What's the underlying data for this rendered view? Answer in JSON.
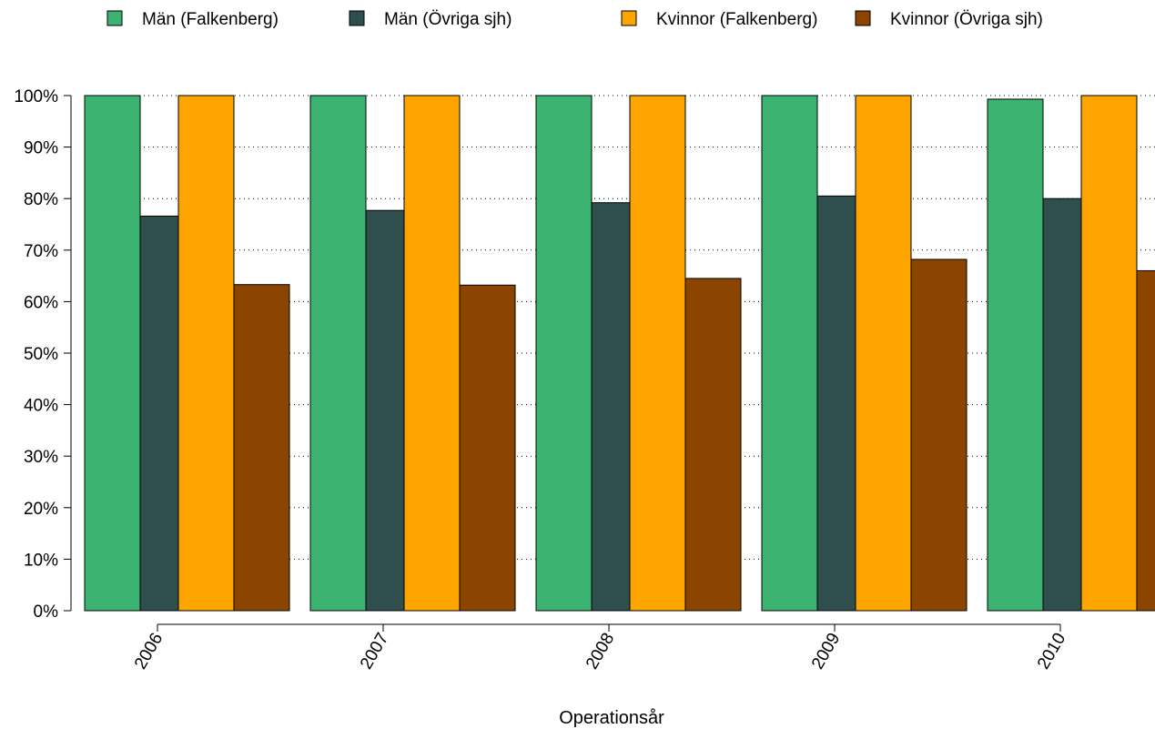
{
  "chart_data": {
    "type": "bar",
    "xlabel": "Operationsår",
    "ylabel": "",
    "ylim": [
      0,
      100
    ],
    "y_tick_format": "percent",
    "y_ticks": [
      0,
      10,
      20,
      30,
      40,
      50,
      60,
      70,
      80,
      90,
      100
    ],
    "y_tick_labels": [
      "0%",
      "10%",
      "20%",
      "30%",
      "40%",
      "50%",
      "60%",
      "70%",
      "80%",
      "90%",
      "100%"
    ],
    "categories": [
      "2006",
      "2007",
      "2008",
      "2009",
      "2010"
    ],
    "grid": "horizontal dotted",
    "legend_position": "top",
    "series": [
      {
        "name": "Män (Falkenberg)",
        "color": "#3cb371",
        "values": [
          100,
          100,
          100,
          100,
          99.3
        ]
      },
      {
        "name": "Män (Övriga sjh)",
        "color": "#2f4f4f",
        "values": [
          76.6,
          77.7,
          79.2,
          80.5,
          80.0
        ]
      },
      {
        "name": "Kvinnor (Falkenberg)",
        "color": "#ffa500",
        "values": [
          100,
          100,
          100,
          100,
          100
        ]
      },
      {
        "name": "Kvinnor (Övriga sjh)",
        "color": "#8b4500",
        "values": [
          63.3,
          63.2,
          64.5,
          68.2,
          66.0
        ]
      }
    ]
  }
}
